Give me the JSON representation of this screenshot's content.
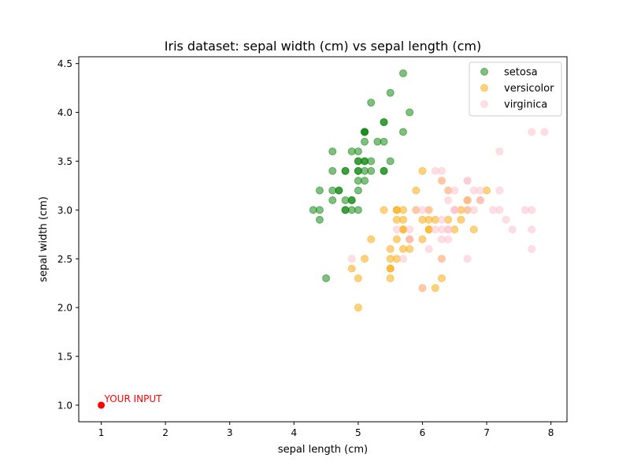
{
  "chart_data": {
    "type": "scatter",
    "title": "Iris dataset: sepal width (cm) vs sepal length (cm)",
    "xlabel": "sepal length (cm)",
    "ylabel": "sepal width (cm)",
    "xlim": [
      0.65,
      8.25
    ],
    "ylim": [
      0.83,
      4.57
    ],
    "xticks": [
      1,
      2,
      3,
      4,
      5,
      6,
      7,
      8
    ],
    "yticks": [
      1.0,
      1.5,
      2.0,
      2.5,
      3.0,
      3.5,
      4.0,
      4.5
    ],
    "xtick_labels": [
      "1",
      "2",
      "3",
      "4",
      "5",
      "6",
      "7",
      "8"
    ],
    "ytick_labels": [
      "1.0",
      "1.5",
      "2.0",
      "2.5",
      "3.0",
      "3.5",
      "4.0",
      "4.5"
    ],
    "grid": false,
    "legend_position": "top-right",
    "series": [
      {
        "name": "setosa",
        "color": "#008000",
        "alpha": 0.5,
        "points": [
          [
            5.1,
            3.5
          ],
          [
            4.9,
            3.0
          ],
          [
            4.7,
            3.2
          ],
          [
            4.6,
            3.1
          ],
          [
            5.0,
            3.6
          ],
          [
            5.4,
            3.9
          ],
          [
            4.6,
            3.4
          ],
          [
            5.0,
            3.4
          ],
          [
            4.4,
            2.9
          ],
          [
            4.9,
            3.1
          ],
          [
            5.4,
            3.7
          ],
          [
            4.8,
            3.4
          ],
          [
            4.8,
            3.0
          ],
          [
            4.3,
            3.0
          ],
          [
            5.8,
            4.0
          ],
          [
            5.7,
            4.4
          ],
          [
            5.4,
            3.9
          ],
          [
            5.1,
            3.5
          ],
          [
            5.7,
            3.8
          ],
          [
            5.1,
            3.8
          ],
          [
            5.4,
            3.4
          ],
          [
            5.1,
            3.7
          ],
          [
            4.6,
            3.6
          ],
          [
            5.1,
            3.3
          ],
          [
            4.8,
            3.4
          ],
          [
            5.0,
            3.0
          ],
          [
            5.0,
            3.4
          ],
          [
            5.2,
            3.5
          ],
          [
            5.2,
            3.4
          ],
          [
            4.7,
            3.2
          ],
          [
            4.8,
            3.1
          ],
          [
            5.4,
            3.4
          ],
          [
            5.2,
            4.1
          ],
          [
            5.5,
            4.2
          ],
          [
            4.9,
            3.1
          ],
          [
            5.0,
            3.2
          ],
          [
            5.5,
            3.5
          ],
          [
            4.9,
            3.6
          ],
          [
            4.4,
            3.0
          ],
          [
            5.1,
            3.4
          ],
          [
            5.0,
            3.5
          ],
          [
            4.5,
            2.3
          ],
          [
            4.4,
            3.2
          ],
          [
            5.0,
            3.5
          ],
          [
            5.1,
            3.8
          ],
          [
            4.8,
            3.0
          ],
          [
            5.1,
            3.8
          ],
          [
            4.6,
            3.2
          ],
          [
            5.3,
            3.7
          ],
          [
            5.0,
            3.3
          ]
        ]
      },
      {
        "name": "versicolor",
        "color": "#ffa500",
        "alpha": 0.5,
        "points": [
          [
            7.0,
            3.2
          ],
          [
            6.4,
            3.2
          ],
          [
            6.9,
            3.1
          ],
          [
            5.5,
            2.3
          ],
          [
            6.5,
            2.8
          ],
          [
            5.7,
            2.8
          ],
          [
            6.3,
            3.3
          ],
          [
            4.9,
            2.4
          ],
          [
            6.6,
            2.9
          ],
          [
            5.2,
            2.7
          ],
          [
            5.0,
            2.0
          ],
          [
            5.9,
            3.0
          ],
          [
            6.0,
            2.2
          ],
          [
            6.1,
            2.9
          ],
          [
            5.6,
            2.9
          ],
          [
            6.7,
            3.1
          ],
          [
            5.6,
            3.0
          ],
          [
            5.8,
            2.7
          ],
          [
            6.2,
            2.2
          ],
          [
            5.6,
            2.5
          ],
          [
            5.9,
            3.2
          ],
          [
            6.1,
            2.8
          ],
          [
            6.3,
            2.5
          ],
          [
            6.1,
            2.8
          ],
          [
            6.4,
            2.9
          ],
          [
            6.6,
            3.0
          ],
          [
            6.8,
            2.8
          ],
          [
            6.7,
            3.0
          ],
          [
            6.0,
            2.9
          ],
          [
            5.7,
            2.6
          ],
          [
            5.5,
            2.4
          ],
          [
            5.5,
            2.4
          ],
          [
            5.8,
            2.7
          ],
          [
            6.0,
            2.7
          ],
          [
            5.4,
            3.0
          ],
          [
            6.0,
            3.4
          ],
          [
            6.7,
            3.1
          ],
          [
            6.3,
            2.3
          ],
          [
            5.6,
            3.0
          ],
          [
            5.5,
            2.5
          ],
          [
            5.5,
            2.6
          ],
          [
            6.1,
            3.0
          ],
          [
            5.8,
            2.6
          ],
          [
            5.0,
            2.3
          ],
          [
            5.6,
            2.7
          ],
          [
            5.7,
            3.0
          ],
          [
            5.7,
            2.9
          ],
          [
            6.2,
            2.9
          ],
          [
            5.1,
            2.5
          ],
          [
            5.7,
            2.8
          ]
        ]
      },
      {
        "name": "virginica",
        "color": "#ffc0cb",
        "alpha": 0.5,
        "points": [
          [
            6.3,
            3.3
          ],
          [
            5.8,
            2.7
          ],
          [
            7.1,
            3.0
          ],
          [
            6.3,
            2.9
          ],
          [
            6.5,
            3.0
          ],
          [
            7.6,
            3.0
          ],
          [
            4.9,
            2.5
          ],
          [
            7.3,
            2.9
          ],
          [
            6.7,
            2.5
          ],
          [
            7.2,
            3.6
          ],
          [
            6.5,
            3.2
          ],
          [
            6.4,
            2.7
          ],
          [
            6.8,
            3.0
          ],
          [
            5.7,
            2.5
          ],
          [
            5.8,
            2.8
          ],
          [
            6.4,
            3.2
          ],
          [
            6.5,
            3.0
          ],
          [
            7.7,
            3.8
          ],
          [
            7.7,
            2.6
          ],
          [
            6.0,
            2.2
          ],
          [
            6.9,
            3.2
          ],
          [
            5.6,
            2.8
          ],
          [
            7.7,
            2.8
          ],
          [
            6.3,
            2.7
          ],
          [
            6.7,
            3.3
          ],
          [
            7.2,
            3.2
          ],
          [
            6.2,
            2.8
          ],
          [
            6.1,
            3.0
          ],
          [
            6.4,
            2.8
          ],
          [
            7.2,
            3.0
          ],
          [
            7.4,
            2.8
          ],
          [
            7.9,
            3.8
          ],
          [
            6.4,
            2.8
          ],
          [
            6.3,
            2.8
          ],
          [
            6.1,
            2.6
          ],
          [
            7.7,
            3.0
          ],
          [
            6.3,
            3.4
          ],
          [
            6.4,
            3.1
          ],
          [
            6.0,
            3.0
          ],
          [
            6.9,
            3.1
          ],
          [
            6.7,
            3.1
          ],
          [
            6.9,
            3.1
          ],
          [
            5.8,
            2.7
          ],
          [
            6.8,
            3.2
          ],
          [
            6.7,
            3.3
          ],
          [
            6.7,
            3.0
          ],
          [
            6.3,
            2.5
          ],
          [
            6.5,
            3.0
          ],
          [
            6.2,
            3.4
          ],
          [
            5.9,
            3.0
          ]
        ]
      }
    ],
    "highlight": {
      "label": "YOUR INPUT",
      "color": "#ff0000",
      "x": 1.0,
      "y": 1.0
    }
  }
}
